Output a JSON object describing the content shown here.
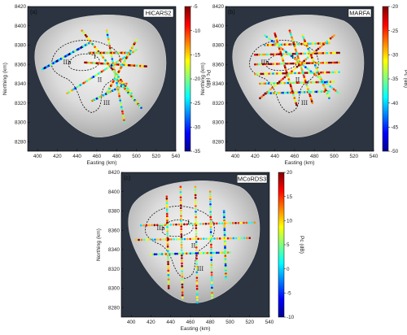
{
  "chart_data": [
    {
      "type": "scatter",
      "panel_label": "(a)",
      "instrument": "HiCARS2",
      "xlabel": "Easting (km)",
      "ylabel": "Northing (km)",
      "xlim": [
        390,
        540
      ],
      "ylim": [
        8270,
        8420
      ],
      "xticks": [
        400,
        420,
        440,
        460,
        480,
        500,
        520,
        540
      ],
      "yticks": [
        8280,
        8300,
        8320,
        8340,
        8360,
        8380,
        8400,
        8420
      ],
      "colorbar": {
        "label": "Pc (dB)",
        "ticks": [
          -5,
          -10,
          -15,
          -20,
          -25,
          -30,
          -35
        ],
        "min": -35,
        "max": -5
      },
      "region_labels": [
        "I",
        "IIb",
        "II",
        "III"
      ],
      "tracks": [
        {
          "x": [
            448,
            510
          ],
          "y": [
            8362,
            8358
          ],
          "value": -12
        },
        {
          "x": [
            470,
            488
          ],
          "y": [
            8395,
            8300
          ],
          "value": -18
        },
        {
          "x": [
            445,
            495
          ],
          "y": [
            8395,
            8330
          ],
          "value": -15
        },
        {
          "x": [
            430,
            500
          ],
          "y": [
            8330,
            8375
          ],
          "value": -20
        },
        {
          "x": [
            470,
            500
          ],
          "y": [
            8330,
            8385
          ],
          "value": -16
        },
        {
          "x": [
            452,
            492
          ],
          "y": [
            8372,
            8372
          ],
          "value": -14
        },
        {
          "x": [
            455,
            490
          ],
          "y": [
            8322,
            8340
          ],
          "value": -22
        },
        {
          "x": [
            405,
            452
          ],
          "y": [
            8355,
            8382
          ],
          "value": -28
        },
        {
          "x": [
            480,
            505
          ],
          "y": [
            8345,
            8315
          ],
          "value": -19
        }
      ]
    },
    {
      "type": "scatter",
      "panel_label": "(b)",
      "instrument": "MARFA",
      "xlabel": "Easting (km)",
      "ylabel": "Northing (km)",
      "xlim": [
        390,
        540
      ],
      "ylim": [
        8270,
        8420
      ],
      "xticks": [
        400,
        420,
        440,
        460,
        480,
        500,
        520,
        540
      ],
      "yticks": [
        8280,
        8300,
        8320,
        8340,
        8360,
        8380,
        8400,
        8420
      ],
      "colorbar": {
        "label": "Pc (dB)",
        "ticks": [
          -20,
          -25,
          -30,
          -35,
          -40,
          -45,
          -50
        ],
        "min": -50,
        "max": -20
      },
      "region_labels": [
        "I",
        "IIb",
        "II",
        "III"
      ],
      "tracks": [
        {
          "x": [
            420,
            505
          ],
          "y": [
            8370,
            8372
          ],
          "value": -28
        },
        {
          "x": [
            420,
            505
          ],
          "y": [
            8360,
            8362
          ],
          "value": -25
        },
        {
          "x": [
            420,
            505
          ],
          "y": [
            8350,
            8352
          ],
          "value": -30
        },
        {
          "x": [
            425,
            500
          ],
          "y": [
            8340,
            8342
          ],
          "value": -33
        },
        {
          "x": [
            430,
            495
          ],
          "y": [
            8330,
            8332
          ],
          "value": -36
        },
        {
          "x": [
            430,
            495
          ],
          "y": [
            8380,
            8382
          ],
          "value": -31
        },
        {
          "x": [
            440,
            462
          ],
          "y": [
            8392,
            8318
          ],
          "value": -27
        },
        {
          "x": [
            455,
            478
          ],
          "y": [
            8395,
            8320
          ],
          "value": -29
        },
        {
          "x": [
            468,
            495
          ],
          "y": [
            8390,
            8325
          ],
          "value": -32
        },
        {
          "x": [
            425,
            500
          ],
          "y": [
            8325,
            8390
          ],
          "value": -26
        },
        {
          "x": [
            430,
            505
          ],
          "y": [
            8390,
            8330
          ],
          "value": -35
        }
      ]
    },
    {
      "type": "scatter",
      "panel_label": "(c)",
      "instrument": "MCoRDS3",
      "xlabel": "Easting (km)",
      "ylabel": "Northing (km)",
      "xlim": [
        390,
        540
      ],
      "ylim": [
        8270,
        8420
      ],
      "xticks": [
        400,
        420,
        440,
        460,
        480,
        500,
        520,
        540
      ],
      "yticks": [
        8280,
        8300,
        8320,
        8340,
        8360,
        8380,
        8400,
        8420
      ],
      "colorbar": {
        "label": "Pc (dB)",
        "ticks": [
          20,
          15,
          10,
          5,
          0,
          -5,
          -10
        ],
        "min": -10,
        "max": 20
      },
      "region_labels": [
        "I",
        "IIb",
        "II",
        "III"
      ],
      "tracks": [
        {
          "x": [
            436,
            438
          ],
          "y": [
            8395,
            8300
          ],
          "value": 10
        },
        {
          "x": [
            450,
            452
          ],
          "y": [
            8405,
            8290
          ],
          "value": 12
        },
        {
          "x": [
            465,
            467
          ],
          "y": [
            8405,
            8285
          ],
          "value": 9
        },
        {
          "x": [
            480,
            482
          ],
          "y": [
            8400,
            8290
          ],
          "value": 6
        },
        {
          "x": [
            494,
            496
          ],
          "y": [
            8380,
            8310
          ],
          "value": 4
        },
        {
          "x": [
            410,
            525
          ],
          "y": [
            8365,
            8368
          ],
          "value": 11
        },
        {
          "x": [
            405,
            520
          ],
          "y": [
            8350,
            8352
          ],
          "value": 8
        },
        {
          "x": [
            420,
            500
          ],
          "y": [
            8335,
            8337
          ],
          "value": 3
        }
      ]
    }
  ]
}
